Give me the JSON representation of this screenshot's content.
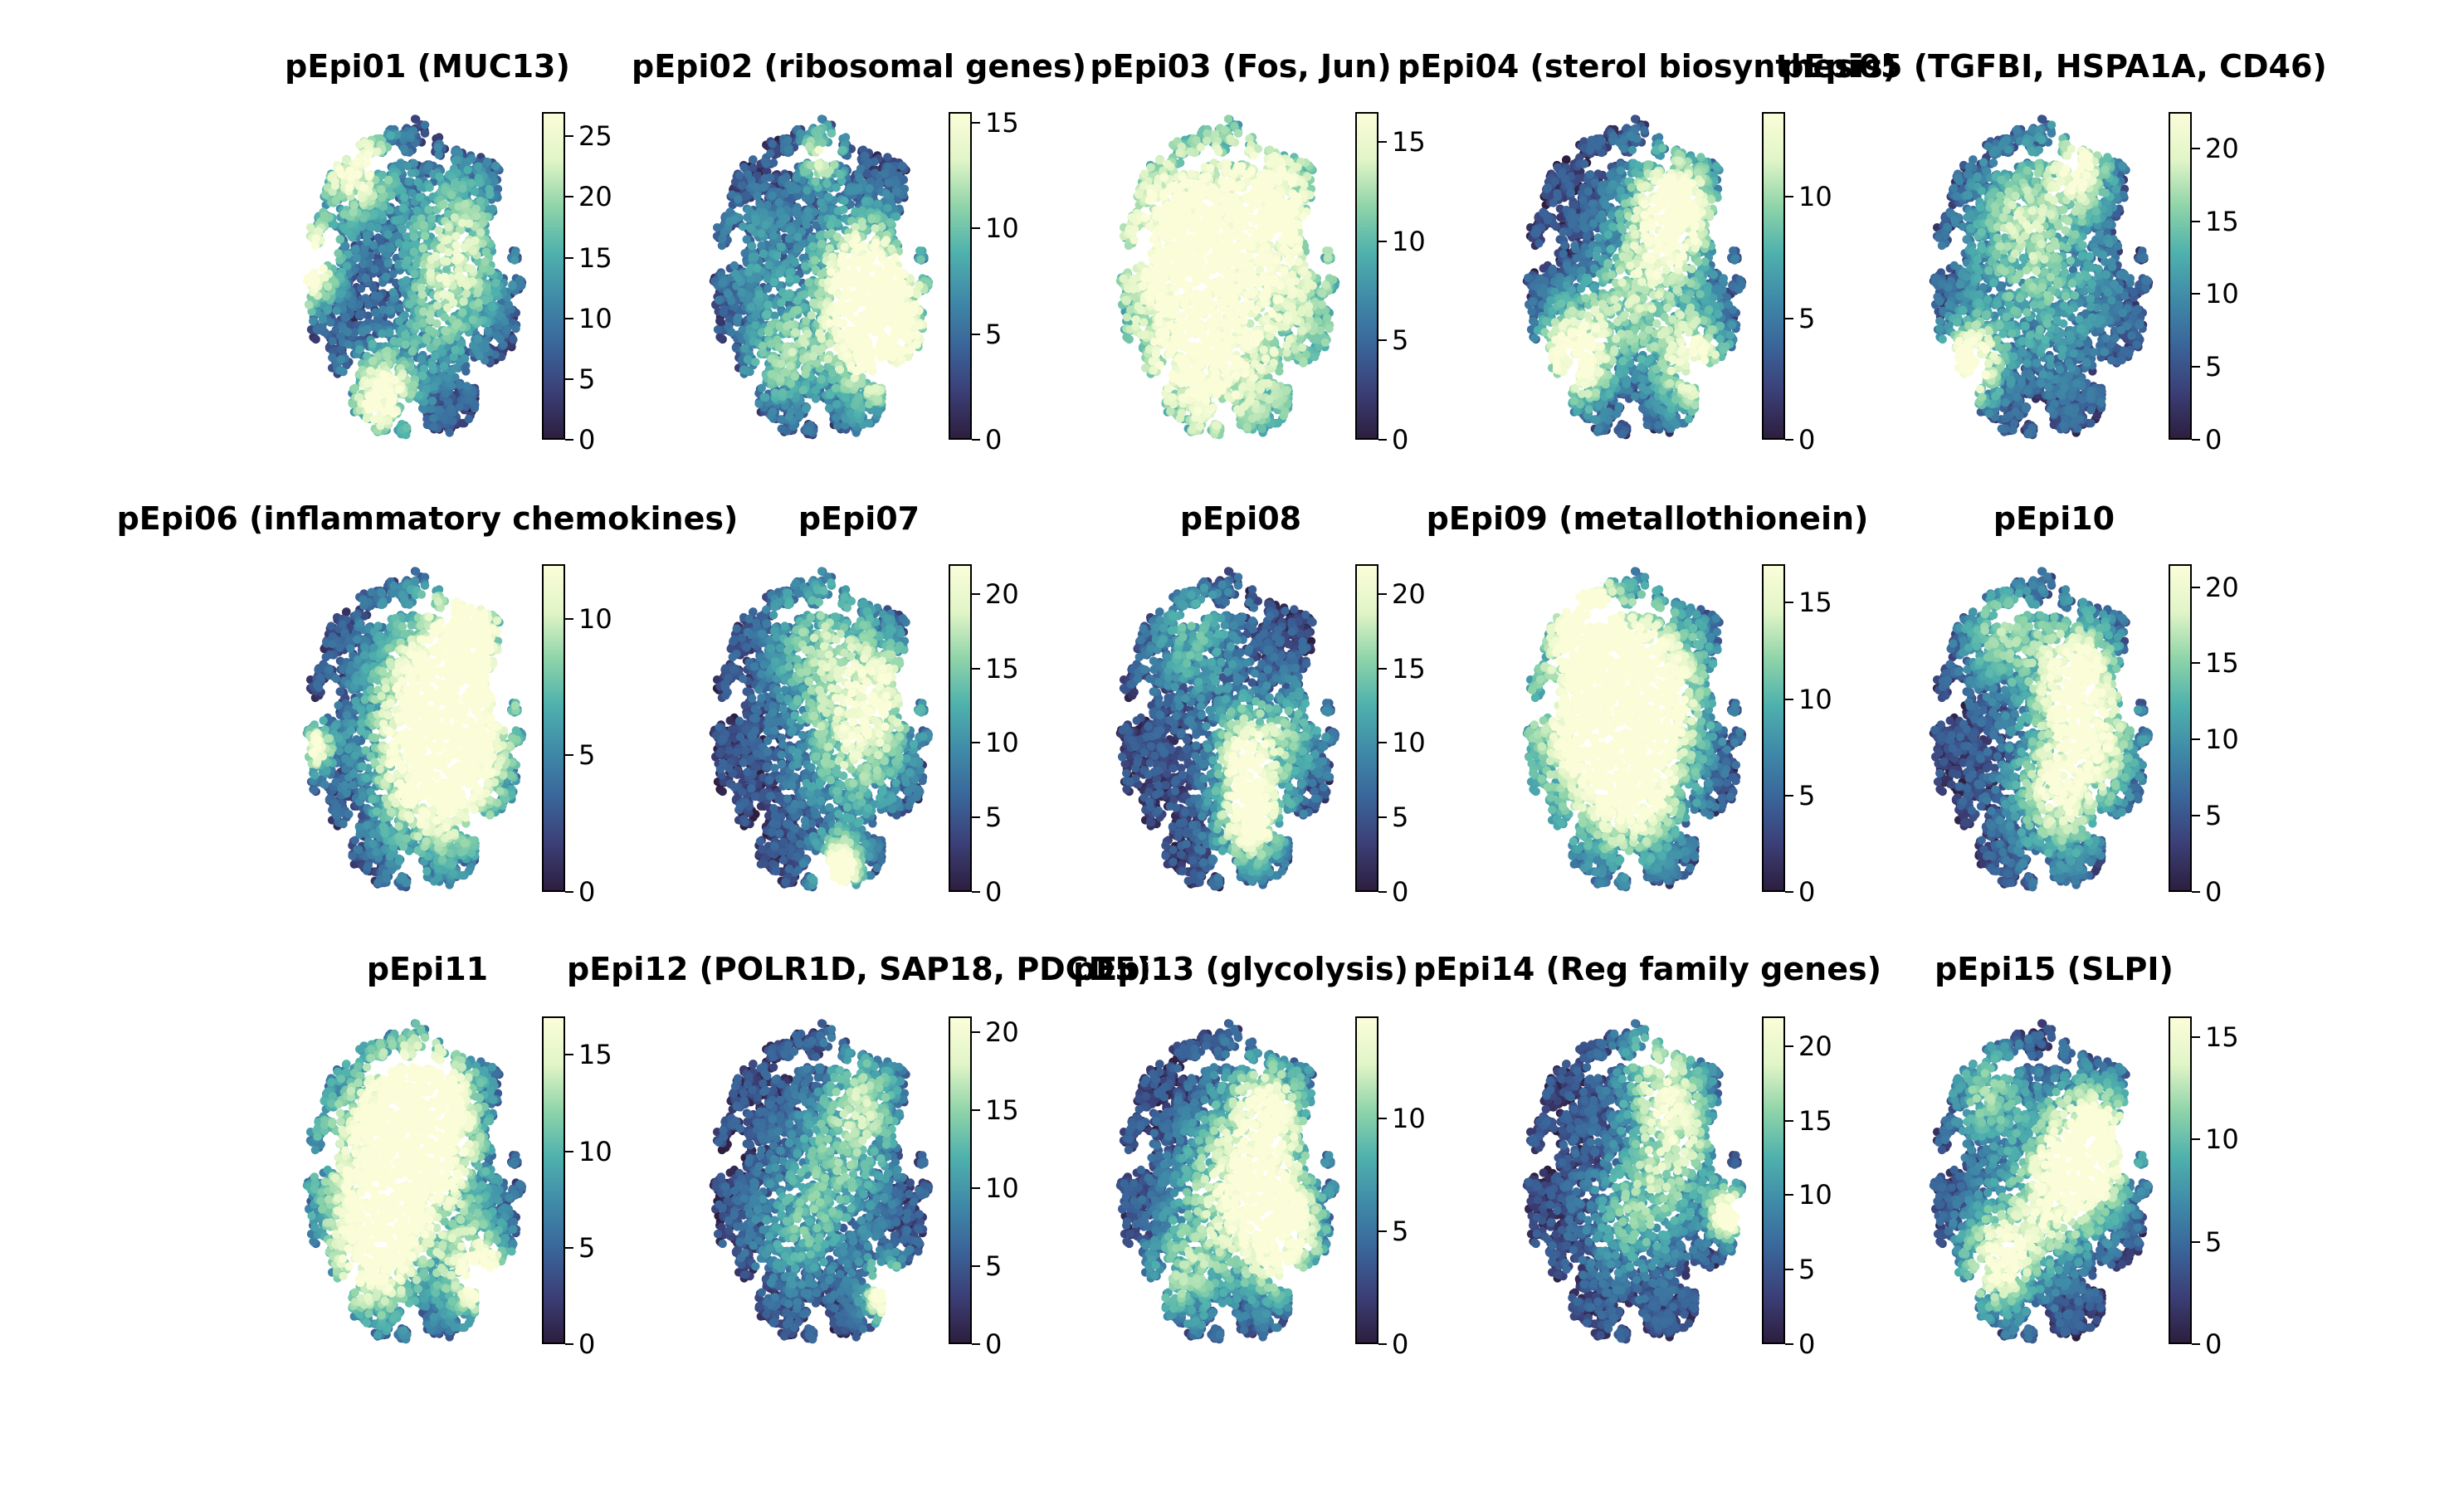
{
  "chart_data": [
    {
      "type": "scatter",
      "title": "pEpi01 (MUC13)",
      "clim": [
        0,
        27
      ],
      "ticks": [
        0,
        5,
        10,
        15,
        20,
        25
      ],
      "hotspots": [
        [
          -1.0,
          0.1,
          0.22,
          1.0
        ],
        [
          -0.55,
          0.75,
          0.25,
          0.85
        ],
        [
          -0.3,
          -0.75,
          0.22,
          0.9
        ],
        [
          0.4,
          0.3,
          0.35,
          0.55
        ],
        [
          0.25,
          -0.2,
          0.3,
          0.4
        ]
      ]
    },
    {
      "type": "scatter",
      "title": "pEpi02 (ribosomal genes)",
      "clim": [
        0,
        15.5
      ],
      "ticks": [
        0,
        5,
        10,
        15
      ],
      "hotspots": [
        [
          0.55,
          -0.35,
          0.35,
          1.0
        ],
        [
          0.35,
          0.05,
          0.3,
          0.7
        ],
        [
          -0.35,
          -0.5,
          0.25,
          0.5
        ],
        [
          0.0,
          0.8,
          0.15,
          0.7
        ],
        [
          -0.6,
          0.2,
          0.3,
          0.25
        ]
      ]
    },
    {
      "type": "scatter",
      "title": "pEpi03 (Fos, Jun)",
      "clim": [
        0,
        16.5
      ],
      "ticks": [
        0,
        5,
        10,
        15
      ],
      "hotspots": [
        [
          0.0,
          0.0,
          0.9,
          0.8
        ],
        [
          -0.5,
          0.3,
          0.35,
          0.35
        ],
        [
          0.4,
          0.5,
          0.3,
          0.3
        ],
        [
          -0.3,
          -0.6,
          0.3,
          0.3
        ]
      ]
    },
    {
      "type": "scatter",
      "title": "pEpi04 (sterol biosynthesis)",
      "clim": [
        0,
        13.5
      ],
      "ticks": [
        0,
        5,
        10
      ],
      "hotspots": [
        [
          0.35,
          0.45,
          0.3,
          1.0
        ],
        [
          -0.55,
          -0.5,
          0.25,
          0.95
        ],
        [
          0.55,
          -0.55,
          0.25,
          0.8
        ],
        [
          0.0,
          -0.1,
          0.3,
          0.5
        ]
      ]
    },
    {
      "type": "scatter",
      "title": "pEpi05 (TGFBI, HSPA1A, CD46)",
      "clim": [
        0,
        22.5
      ],
      "ticks": [
        0,
        5,
        10,
        15,
        20
      ],
      "hotspots": [
        [
          -0.65,
          -0.55,
          0.18,
          1.0
        ],
        [
          0.35,
          0.75,
          0.2,
          0.7
        ],
        [
          0.0,
          0.0,
          0.5,
          0.4
        ],
        [
          -0.2,
          0.45,
          0.3,
          0.35
        ]
      ]
    },
    {
      "type": "scatter",
      "title": "pEpi06 (inflammatory chemokines)",
      "clim": [
        0,
        12
      ],
      "ticks": [
        0,
        5,
        10
      ],
      "hotspots": [
        [
          0.3,
          0.25,
          0.45,
          1.0
        ],
        [
          0.2,
          -0.3,
          0.4,
          0.75
        ],
        [
          -0.9,
          -0.1,
          0.12,
          0.8
        ],
        [
          0.5,
          0.75,
          0.2,
          0.6
        ]
      ]
    },
    {
      "type": "scatter",
      "title": "pEpi07",
      "clim": [
        0,
        22
      ],
      "ticks": [
        0,
        5,
        10,
        15,
        20
      ],
      "hotspots": [
        [
          0.15,
          -0.9,
          0.15,
          1.0
        ],
        [
          0.3,
          -0.1,
          0.35,
          0.6
        ],
        [
          0.0,
          0.6,
          0.35,
          0.5
        ],
        [
          0.6,
          0.3,
          0.25,
          0.45
        ]
      ]
    },
    {
      "type": "scatter",
      "title": "pEpi08",
      "clim": [
        0,
        22
      ],
      "ticks": [
        0,
        5,
        10,
        15,
        20
      ],
      "hotspots": [
        [
          0.2,
          -0.55,
          0.22,
          1.0
        ],
        [
          0.15,
          -0.1,
          0.2,
          0.7
        ],
        [
          -0.3,
          0.6,
          0.3,
          0.4
        ],
        [
          0.6,
          0.0,
          0.25,
          0.4
        ]
      ]
    },
    {
      "type": "scatter",
      "title": "pEpi09 (metallothionein)",
      "clim": [
        0,
        17
      ],
      "ticks": [
        0,
        5,
        10,
        15
      ],
      "hotspots": [
        [
          -0.3,
          0.1,
          0.5,
          1.0
        ],
        [
          -0.45,
          0.75,
          0.2,
          0.9
        ],
        [
          0.2,
          0.3,
          0.35,
          0.6
        ],
        [
          0.0,
          -0.4,
          0.3,
          0.55
        ]
      ]
    },
    {
      "type": "scatter",
      "title": "pEpi10",
      "clim": [
        0,
        21.5
      ],
      "ticks": [
        0,
        5,
        10,
        15,
        20
      ],
      "hotspots": [
        [
          0.3,
          0.35,
          0.3,
          0.9
        ],
        [
          0.15,
          -0.4,
          0.3,
          0.75
        ],
        [
          -0.4,
          0.65,
          0.25,
          0.5
        ],
        [
          0.6,
          -0.1,
          0.25,
          0.4
        ]
      ]
    },
    {
      "type": "scatter",
      "title": "pEpi11",
      "clim": [
        0,
        17
      ],
      "ticks": [
        0,
        5,
        10,
        15
      ],
      "hotspots": [
        [
          -0.15,
          0.15,
          0.5,
          1.0
        ],
        [
          0.1,
          0.5,
          0.3,
          0.8
        ],
        [
          0.6,
          -0.6,
          0.2,
          0.9
        ],
        [
          -0.4,
          -0.5,
          0.3,
          0.6
        ]
      ]
    },
    {
      "type": "scatter",
      "title": "pEpi12 (POLR1D, SAP18, PDCD5)",
      "clim": [
        0,
        21
      ],
      "ticks": [
        0,
        5,
        10,
        15,
        20
      ],
      "hotspots": [
        [
          0.6,
          -0.7,
          0.15,
          1.0
        ],
        [
          0.2,
          0.2,
          0.35,
          0.4
        ],
        [
          -0.2,
          -0.3,
          0.3,
          0.35
        ],
        [
          0.4,
          0.6,
          0.25,
          0.4
        ]
      ]
    },
    {
      "type": "scatter",
      "title": "pEpi13 (glycolysis)",
      "clim": [
        0,
        14.5
      ],
      "ticks": [
        0,
        5,
        10
      ],
      "hotspots": [
        [
          0.45,
          -0.3,
          0.3,
          1.0
        ],
        [
          0.35,
          0.45,
          0.3,
          0.8
        ],
        [
          -0.1,
          0.0,
          0.3,
          0.5
        ],
        [
          -0.4,
          -0.6,
          0.25,
          0.5
        ]
      ]
    },
    {
      "type": "scatter",
      "title": "pEpi14 (Reg family genes)",
      "clim": [
        0,
        22
      ],
      "ticks": [
        0,
        5,
        10,
        15,
        20
      ],
      "hotspots": [
        [
          0.85,
          -0.2,
          0.12,
          1.0
        ],
        [
          0.4,
          0.3,
          0.3,
          0.6
        ],
        [
          0.0,
          -0.2,
          0.3,
          0.45
        ],
        [
          0.2,
          0.75,
          0.25,
          0.5
        ]
      ]
    },
    {
      "type": "scatter",
      "title": "pEpi15 (SLPI)",
      "clim": [
        0,
        16
      ],
      "ticks": [
        0,
        5,
        10,
        15
      ],
      "hotspots": [
        [
          0.45,
          0.25,
          0.3,
          1.0
        ],
        [
          -0.4,
          -0.5,
          0.25,
          0.8
        ],
        [
          0.1,
          -0.1,
          0.3,
          0.6
        ],
        [
          -0.5,
          0.6,
          0.25,
          0.5
        ]
      ]
    }
  ],
  "colormap": [
    "#2d1e3e",
    "#3b3f77",
    "#3a659a",
    "#3f8aa8",
    "#4fb1ad",
    "#8fd4a9",
    "#e1f5c7",
    "#fbfdd9"
  ]
}
